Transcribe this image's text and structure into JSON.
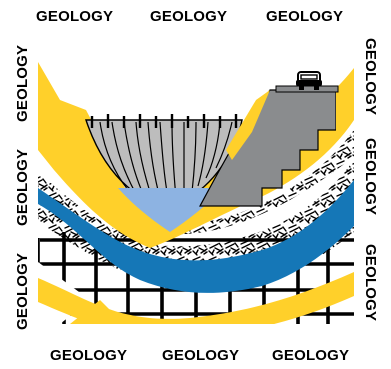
{
  "border": {
    "top": [
      "GEOLOGY",
      "GEOLOGY",
      "GEOLOGY"
    ],
    "bottom": [
      "GEOLOGY",
      "GEOLOGY",
      "GEOLOGY"
    ],
    "left": [
      "GEOLOGY",
      "GEOLOGY",
      "GEOLOGY"
    ],
    "right": [
      "GEOLOGY",
      "GEOLOGY",
      "GEOLOGY"
    ]
  },
  "colors": {
    "yellow": "#FFD02A",
    "blue": "#1577B7",
    "water": "#8DB3E2",
    "concrete": "#8A8C8E",
    "dam": "#BDBDBD",
    "ink": "#000000",
    "paper": "#FFFFFF"
  },
  "icons": [
    "car-icon",
    "dam-icon",
    "water-icon",
    "staircase-icon"
  ]
}
